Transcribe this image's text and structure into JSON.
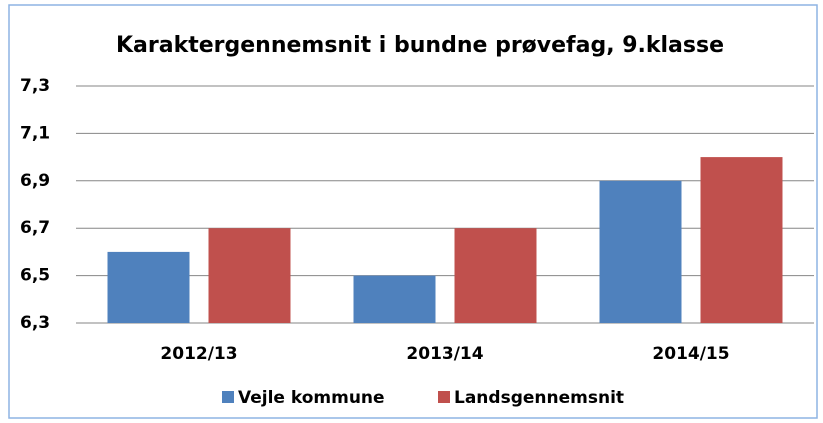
{
  "chart_data": {
    "type": "bar",
    "title": "Karaktergennemsnit i bundne prøvefag, 9.klasse",
    "categories": [
      "2012/13",
      "2013/14",
      "2014/15"
    ],
    "series": [
      {
        "name": "Vejle kommune",
        "color": "#4f81bd",
        "values": [
          6.6,
          6.5,
          6.9
        ]
      },
      {
        "name": "Landsgennemsnit",
        "color": "#c0504d",
        "values": [
          6.7,
          6.7,
          7.0
        ]
      }
    ],
    "ylim": [
      6.3,
      7.3
    ],
    "yticks": [
      {
        "value": 6.3,
        "label": "6,3"
      },
      {
        "value": 6.5,
        "label": "6,5"
      },
      {
        "value": 6.7,
        "label": "6,7"
      },
      {
        "value": 6.9,
        "label": "6,9"
      },
      {
        "value": 7.1,
        "label": "7,1"
      },
      {
        "value": 7.3,
        "label": "7,3"
      }
    ],
    "grid": true,
    "legend": "bottom"
  }
}
